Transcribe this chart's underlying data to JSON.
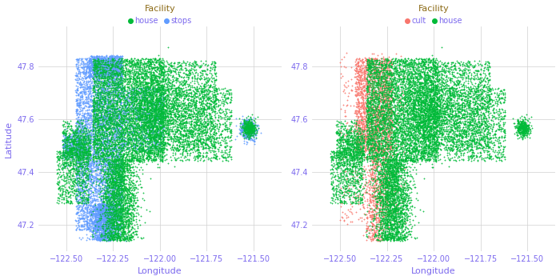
{
  "title_left": "Facility",
  "title_right": "Facility",
  "legend_left": [
    {
      "label": "house",
      "color": "#00BA38"
    },
    {
      "label": "stops",
      "color": "#619CFF"
    }
  ],
  "legend_right": [
    {
      "label": "cult",
      "color": "#F8766D"
    },
    {
      "label": "house",
      "color": "#00BA38"
    }
  ],
  "xlim": [
    -122.65,
    -121.35
  ],
  "ylim": [
    47.1,
    47.95
  ],
  "xticks": [
    -122.5,
    -122.25,
    -122.0,
    -121.75,
    -121.5
  ],
  "yticks": [
    47.2,
    47.4,
    47.6,
    47.8
  ],
  "xlabel": "Longitude",
  "ylabel": "Latitude",
  "axis_label_color": "#7B68EE",
  "tick_label_color": "#7B68EE",
  "legend_title_color": "#8B6914",
  "grid_color": "#d0d0d0",
  "background_color": "#ffffff",
  "house_color": "#00BA38",
  "stops_color": "#619CFF",
  "cult_color": "#F8766D",
  "seed": 42,
  "marker_size": 2.0
}
